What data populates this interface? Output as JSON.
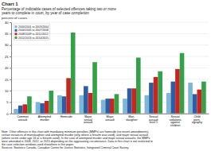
{
  "chart_data": {
    "type": "bar",
    "title": "Chart 1",
    "subtitle": [
      "Percentage of indictable cases of selected offences taking two or more",
      "years to complete in court, by year of case completion"
    ],
    "ylabel": "percent of cases",
    "categories": [
      "Common\nassault",
      "Attempted\nmurder",
      "Homicide",
      "Major\nsexual\nassault",
      "Major\nassault",
      "Man-\nslaughter",
      "Sexual\nassault\nlevel 1",
      "Sexual\nviolations\nagainst\nchildren",
      "Child\nporn-\nography"
    ],
    "series": [
      {
        "name": "2000/2001 to 2003/2004",
        "color": "#7db6d7",
        "values": [
          2.0,
          5.0,
          8.0,
          8.0,
          6.0,
          6.5,
          8.0,
          9.0,
          13.5
        ]
      },
      {
        "name": "2004/2005 to 2007/2008",
        "color": "#2b5fa5",
        "values": [
          3.5,
          4.5,
          7.5,
          12.0,
          6.5,
          11.0,
          13.5,
          14.0,
          8.5
        ]
      },
      {
        "name": "2008/2009 to 2011/2012",
        "color": "#cc2222",
        "values": [
          4.0,
          5.5,
          15.5,
          9.0,
          6.5,
          11.0,
          16.0,
          19.5,
          10.5
        ]
      },
      {
        "name": "2012/2013 to 2014/2015",
        "color": "#33a147",
        "values": [
          7.5,
          10.0,
          35.5,
          22.5,
          8.5,
          24.5,
          18.5,
          26.5,
          14.0
        ]
      }
    ],
    "ylim": [
      0,
      40
    ],
    "yticks": [
      0,
      5,
      10,
      15,
      20,
      25,
      30,
      35,
      40
    ],
    "grid": true,
    "legend": "upper left",
    "annotations": [
      "Note: Other offences in this chart with mandatory minimum penalties (MMPs) are homicide (no recent amendments),",
      "certain instances of manslaughter and attempted murder (only where a firearm was used), and major sexual assault",
      "(where victim under age 16 or a firearm used). In the case of attempted murder and major sexual assaults, the MMPs",
      "were amended in 2008, 2012, or 2015 depending on the aggravating circumstance. Data in this chart is not restricted to",
      "the case selection windows used elsewhere in this paper.",
      "Sources: Statistics Canada, Canadian Centre for Justice Statistics, Integrated Criminal Court Survey."
    ]
  }
}
